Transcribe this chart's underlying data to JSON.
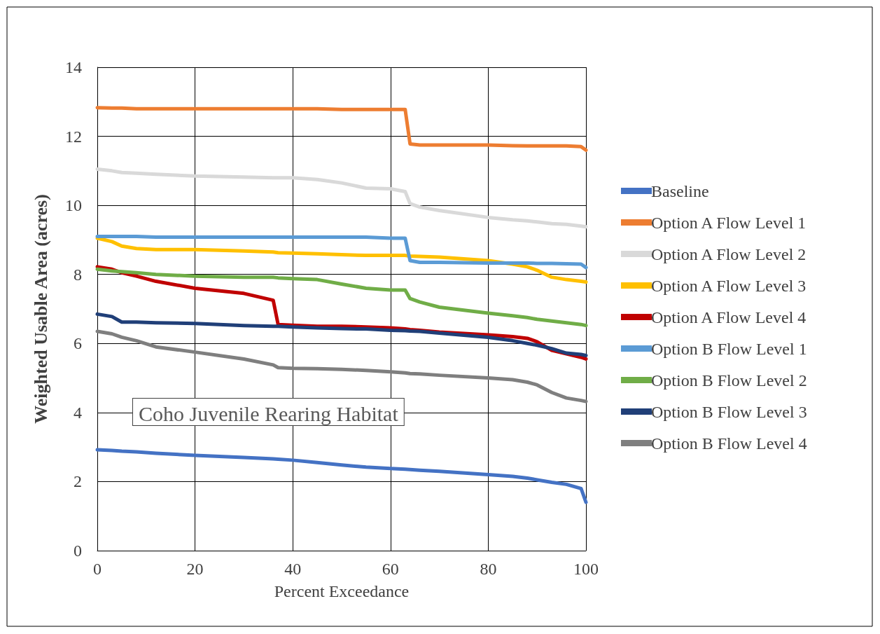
{
  "chart_data": {
    "type": "line",
    "xlabel": "Percent Exceedance",
    "ylabel": "Weighted Usable Area (acres)",
    "annotations": [
      "Coho Juvenile Rearing Habitat"
    ],
    "x": [
      0,
      3,
      5,
      8,
      12,
      20,
      30,
      36,
      37,
      40,
      45,
      50,
      55,
      60,
      63,
      64,
      66,
      70,
      80,
      85,
      88,
      90,
      93,
      96,
      99,
      100
    ],
    "xlim": [
      0,
      100
    ],
    "xticks": [
      0,
      20,
      40,
      60,
      80,
      100
    ],
    "ylim": [
      0,
      14
    ],
    "yticks": [
      0,
      2,
      4,
      6,
      8,
      10,
      12,
      14
    ],
    "grid": true,
    "legend": "right",
    "marker": "none",
    "line_style": "solid",
    "series": [
      {
        "name": "Baseline",
        "color": "#4472c4",
        "values": [
          2.92,
          2.9,
          2.88,
          2.86,
          2.82,
          2.76,
          2.7,
          2.66,
          2.65,
          2.62,
          2.55,
          2.48,
          2.42,
          2.38,
          2.36,
          2.35,
          2.33,
          2.3,
          2.2,
          2.15,
          2.1,
          2.05,
          1.98,
          1.92,
          1.8,
          1.4
        ]
      },
      {
        "name": "Option A Flow Level 1",
        "color": "#ed7d31",
        "values": [
          12.83,
          12.82,
          12.82,
          12.8,
          12.8,
          12.8,
          12.8,
          12.8,
          12.8,
          12.8,
          12.8,
          12.78,
          12.78,
          12.78,
          12.78,
          11.78,
          11.75,
          11.75,
          11.75,
          11.73,
          11.72,
          11.72,
          11.72,
          11.72,
          11.7,
          11.6
        ]
      },
      {
        "name": "Option A Flow Level 2",
        "color": "#d9d9d9",
        "values": [
          11.05,
          11.0,
          10.95,
          10.93,
          10.9,
          10.85,
          10.82,
          10.8,
          10.8,
          10.8,
          10.75,
          10.65,
          10.5,
          10.48,
          10.4,
          10.05,
          9.95,
          9.85,
          9.65,
          9.58,
          9.55,
          9.52,
          9.47,
          9.45,
          9.4,
          9.38
        ]
      },
      {
        "name": "Option A Flow Level 3",
        "color": "#ffc000",
        "values": [
          9.05,
          8.95,
          8.82,
          8.75,
          8.72,
          8.72,
          8.68,
          8.65,
          8.63,
          8.62,
          8.6,
          8.57,
          8.55,
          8.55,
          8.55,
          8.53,
          8.52,
          8.5,
          8.4,
          8.3,
          8.22,
          8.12,
          7.92,
          7.85,
          7.8,
          7.78
        ]
      },
      {
        "name": "Option A Flow Level 4",
        "color": "#c00000",
        "values": [
          8.22,
          8.15,
          8.05,
          7.95,
          7.8,
          7.6,
          7.45,
          7.25,
          6.55,
          6.53,
          6.5,
          6.5,
          6.48,
          6.45,
          6.42,
          6.4,
          6.38,
          6.33,
          6.25,
          6.2,
          6.15,
          6.05,
          5.8,
          5.7,
          5.6,
          5.55
        ]
      },
      {
        "name": "Option B Flow Level 1",
        "color": "#5b9bd5",
        "values": [
          9.1,
          9.1,
          9.1,
          9.1,
          9.08,
          9.08,
          9.08,
          9.08,
          9.08,
          9.08,
          9.08,
          9.08,
          9.08,
          9.05,
          9.05,
          8.4,
          8.35,
          8.35,
          8.33,
          8.33,
          8.33,
          8.32,
          8.32,
          8.31,
          8.3,
          8.2
        ]
      },
      {
        "name": "Option B Flow Level 2",
        "color": "#70ad47",
        "values": [
          8.15,
          8.1,
          8.08,
          8.05,
          8.0,
          7.95,
          7.92,
          7.92,
          7.9,
          7.88,
          7.85,
          7.72,
          7.6,
          7.55,
          7.55,
          7.3,
          7.2,
          7.05,
          6.88,
          6.8,
          6.75,
          6.7,
          6.65,
          6.6,
          6.55,
          6.52
        ]
      },
      {
        "name": "Option B Flow Level 3",
        "color": "#203f78",
        "values": [
          6.85,
          6.78,
          6.62,
          6.62,
          6.6,
          6.58,
          6.52,
          6.5,
          6.5,
          6.48,
          6.45,
          6.43,
          6.42,
          6.38,
          6.37,
          6.36,
          6.35,
          6.3,
          6.18,
          6.08,
          6.0,
          5.95,
          5.85,
          5.72,
          5.68,
          5.65
        ]
      },
      {
        "name": "Option B Flow Level 4",
        "color": "#7f7f7f",
        "values": [
          6.35,
          6.28,
          6.18,
          6.08,
          5.9,
          5.75,
          5.55,
          5.38,
          5.3,
          5.28,
          5.27,
          5.25,
          5.22,
          5.18,
          5.15,
          5.13,
          5.12,
          5.08,
          5.0,
          4.95,
          4.88,
          4.8,
          4.58,
          4.42,
          4.35,
          4.32
        ]
      }
    ]
  }
}
